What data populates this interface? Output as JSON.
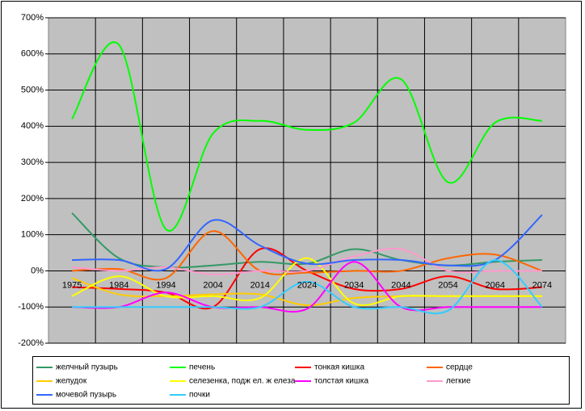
{
  "chart_data": {
    "type": "line",
    "categories": [
      "1975",
      "1984",
      "1994",
      "2004",
      "2014",
      "2024",
      "2034",
      "2044",
      "2054",
      "2064",
      "2074"
    ],
    "ylim": [
      -200,
      700
    ],
    "yticks": [
      {
        "value": -200,
        "label": "-200%"
      },
      {
        "value": -100,
        "label": "-100%"
      },
      {
        "value": 0,
        "label": "0%"
      },
      {
        "value": 100,
        "label": "100%"
      },
      {
        "value": 200,
        "label": "200%"
      },
      {
        "value": 300,
        "label": "300%"
      },
      {
        "value": 400,
        "label": "400%"
      },
      {
        "value": 500,
        "label": "500%"
      },
      {
        "value": 600,
        "label": "600%"
      },
      {
        "value": 700,
        "label": "700%"
      }
    ],
    "grid": true,
    "smooth": true,
    "series": [
      {
        "name": "желчный пузырь",
        "color": "#339966",
        "values": [
          160,
          35,
          10,
          15,
          25,
          20,
          60,
          30,
          15,
          25,
          30
        ]
      },
      {
        "name": "печень",
        "color": "#00ff00",
        "values": [
          420,
          625,
          115,
          380,
          415,
          390,
          410,
          530,
          245,
          410,
          415
        ]
      },
      {
        "name": "тонкая кишка",
        "color": "#ff0000",
        "values": [
          -45,
          -50,
          -60,
          -100,
          60,
          0,
          -50,
          -50,
          -15,
          -50,
          -45
        ]
      },
      {
        "name": "сердце",
        "color": "#ff6600",
        "values": [
          0,
          5,
          -20,
          110,
          0,
          -5,
          0,
          0,
          35,
          45,
          0
        ]
      },
      {
        "name": "желудок",
        "color": "#ffcc00",
        "values": [
          -20,
          -65,
          -70,
          -65,
          -65,
          -95,
          -75,
          -70,
          -70,
          -70,
          -70
        ]
      },
      {
        "name": "селезенка, подж ел. ж елеза",
        "color": "#ffff00",
        "values": [
          -70,
          -15,
          -70,
          -70,
          -75,
          35,
          -90,
          -70,
          -70,
          -70,
          -70
        ]
      },
      {
        "name": "толстая кишка",
        "color": "#ff00ff",
        "values": [
          -100,
          -100,
          -60,
          -100,
          -100,
          -105,
          25,
          -100,
          -100,
          -100,
          -100
        ]
      },
      {
        "name": "легкие",
        "color": "#ff99cc",
        "values": [
          10,
          0,
          10,
          -10,
          0,
          0,
          40,
          60,
          0,
          0,
          0
        ]
      },
      {
        "name": "мочевой пузырь",
        "color": "#3366ff",
        "values": [
          30,
          30,
          5,
          140,
          70,
          20,
          30,
          30,
          15,
          30,
          155
        ]
      },
      {
        "name": "почки",
        "color": "#33ccff",
        "values": [
          -100,
          -100,
          -100,
          -100,
          -100,
          -30,
          -100,
          -100,
          -110,
          30,
          -100
        ]
      }
    ]
  }
}
